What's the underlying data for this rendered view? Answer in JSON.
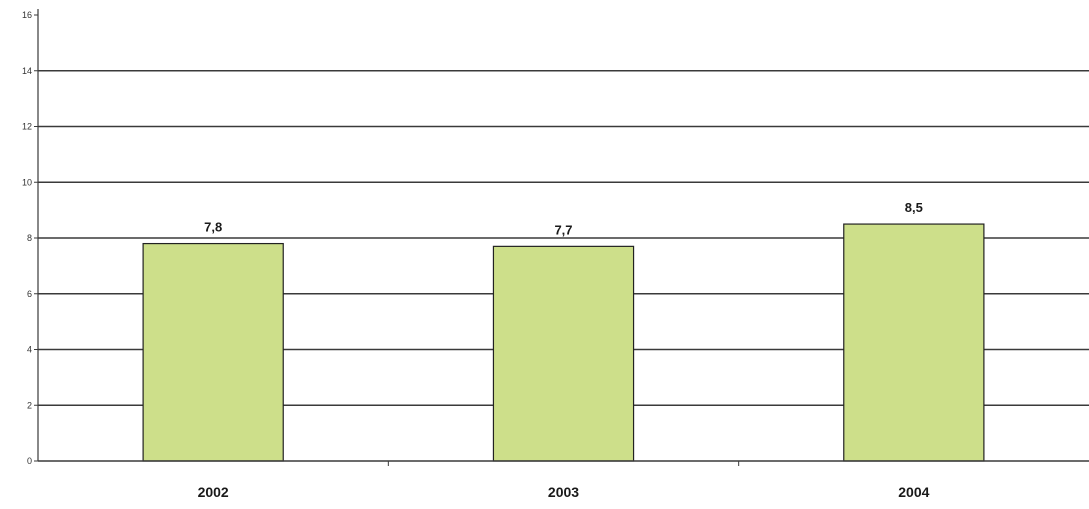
{
  "chart_data": {
    "type": "bar",
    "title": "",
    "xlabel": "",
    "ylabel": "",
    "categories": [
      "2002",
      "2003",
      "2004"
    ],
    "values": [
      7.8,
      7.7,
      8.5
    ],
    "value_labels": [
      "7,8",
      "7,7",
      "8,5"
    ],
    "ylim": [
      0,
      16
    ],
    "yticks": [
      0,
      2,
      4,
      6,
      8,
      10,
      12,
      14,
      16
    ],
    "ytick_labels": [
      "0",
      "2",
      "4",
      "6",
      "8",
      "10",
      "12",
      "14",
      "16"
    ],
    "grid": true,
    "legend": "none",
    "colors": {
      "bar_fill": "#cddf8a",
      "bar_stroke": "#222222",
      "gridline": "#3a3a3a",
      "axis": "#3a3a3a"
    }
  }
}
